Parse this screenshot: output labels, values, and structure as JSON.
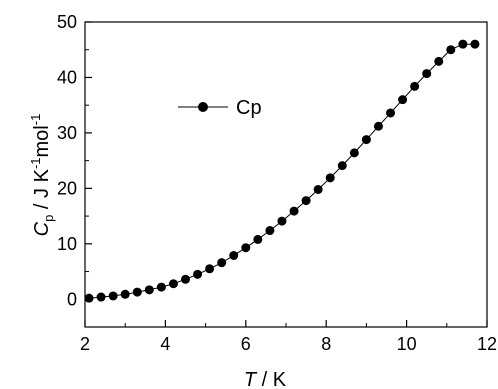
{
  "chart_data": {
    "type": "line",
    "xlabel_italic": "T",
    "xlabel_rest": " / K",
    "ylabel_main": "C",
    "ylabel_sub": "p",
    "ylabel_rest": " / J K",
    "ylabel_sup1": "-1",
    "ylabel_rest2": "mol",
    "ylabel_sup2": "-1",
    "xlim": [
      2,
      12
    ],
    "ylim": [
      -5,
      50
    ],
    "xticks": [
      2,
      4,
      6,
      8,
      10,
      12
    ],
    "yticks": [
      0,
      10,
      20,
      30,
      40,
      50
    ],
    "legend_position": "upper-left",
    "grid": false,
    "series": [
      {
        "name": "Cp",
        "color": "#000000",
        "marker": "filled-circle",
        "x": [
          2.1,
          2.4,
          2.7,
          3.0,
          3.3,
          3.6,
          3.9,
          4.2,
          4.5,
          4.8,
          5.1,
          5.4,
          5.7,
          6.0,
          6.3,
          6.6,
          6.9,
          7.2,
          7.5,
          7.8,
          8.1,
          8.4,
          8.7,
          9.0,
          9.3,
          9.6,
          9.9,
          10.2,
          10.5,
          10.8,
          11.1,
          11.4,
          11.7
        ],
        "y": [
          0.2,
          0.4,
          0.6,
          0.9,
          1.3,
          1.7,
          2.2,
          2.8,
          3.6,
          4.5,
          5.5,
          6.6,
          7.9,
          9.3,
          10.8,
          12.4,
          14.1,
          15.9,
          17.8,
          19.8,
          21.9,
          24.1,
          26.4,
          28.8,
          31.2,
          33.6,
          36.0,
          38.4,
          40.7,
          42.9,
          45.0,
          46.0,
          46.0
        ]
      }
    ]
  }
}
